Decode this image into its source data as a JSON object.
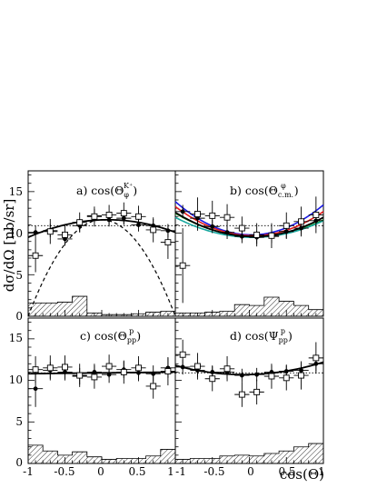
{
  "figure": {
    "ylabel": "dσ/dΩ [nb/sr]",
    "xlabel": "cos(Θ)",
    "x_ticks": [
      "-1",
      "-0.5",
      "0",
      "0.5",
      "1"
    ],
    "x_ticks_last": [
      "-1",
      "-0.5",
      "0",
      "0.5",
      "1"
    ],
    "y_ticks": [
      "0",
      "5",
      "10",
      "15"
    ],
    "colors": {
      "frame": "#000000",
      "fit": "#000000",
      "model_blue": "#1a1ae6",
      "model_red": "#e31a1a",
      "model_green": "#1a9c1a",
      "model_teal": "#18a8a0"
    }
  },
  "chart_data": [
    {
      "type": "scatter",
      "panel": "a",
      "title": "a) cos(Θ_φ^{K+})",
      "title_main": "a) cos(Θ",
      "title_sub": "φ",
      "title_sup": "K⁺",
      "xlim": [
        -1,
        1
      ],
      "ylim": [
        0,
        17.5
      ],
      "reference_line": 10.9,
      "series": [
        {
          "marker": "filled-circle",
          "x": [
            -0.9,
            -0.7,
            -0.5,
            -0.3,
            -0.1,
            0.1,
            0.3,
            0.5,
            0.7,
            0.9
          ],
          "y": [
            10.1,
            10.3,
            9.3,
            10.9,
            12.1,
            11.6,
            11.8,
            11.0,
            10.9,
            10.3
          ],
          "err": [
            0.8,
            0.8,
            0.8,
            0.8,
            0.8,
            0.8,
            0.8,
            0.8,
            0.8,
            0.8
          ]
        },
        {
          "marker": "open-square",
          "x": [
            -0.9,
            -0.7,
            -0.5,
            -0.3,
            -0.1,
            0.1,
            0.3,
            0.5,
            0.7,
            0.9
          ],
          "y": [
            7.3,
            10.2,
            9.8,
            11.3,
            12.0,
            12.2,
            12.4,
            12.0,
            10.4,
            8.9
          ],
          "err": [
            2.0,
            1.5,
            1.3,
            1.2,
            1.2,
            1.2,
            1.3,
            1.3,
            1.5,
            2.0
          ]
        }
      ],
      "fit": {
        "style": "solid",
        "a": 11.6,
        "b": 0.3,
        "c": -1.8
      },
      "model": {
        "style": "dashed",
        "a": 11.6,
        "b": 0.0,
        "c": -11.6
      },
      "histogram": [
        1.6,
        1.6,
        1.7,
        2.4,
        0.4,
        0.2,
        0.2,
        0.3,
        0.5,
        0.6
      ]
    },
    {
      "type": "scatter",
      "panel": "b",
      "title": "b) cos(Θ_{c.m.}^φ)",
      "title_main": "b) cos(Θ",
      "title_sub": "c.m.",
      "title_sup": "φ",
      "xlim": [
        -1,
        1
      ],
      "ylim": [
        0,
        17.5
      ],
      "reference_line": 10.9,
      "series": [
        {
          "marker": "filled-circle",
          "x": [
            -0.9,
            -0.7,
            -0.5,
            -0.3,
            -0.1,
            0.1,
            0.3,
            0.5,
            0.7,
            0.9
          ],
          "y": [
            12.6,
            11.8,
            10.8,
            10.1,
            9.6,
            9.5,
            9.6,
            10.2,
            10.6,
            11.5
          ],
          "err": [
            0.8,
            0.8,
            0.8,
            0.8,
            0.8,
            0.8,
            0.8,
            0.8,
            0.8,
            0.8
          ]
        },
        {
          "marker": "open-square",
          "x": [
            -0.9,
            -0.7,
            -0.5,
            -0.3,
            -0.1,
            0.1,
            0.3,
            0.5,
            0.7,
            0.9
          ],
          "y": [
            6.1,
            12.3,
            12.1,
            11.9,
            10.6,
            9.8,
            9.7,
            10.9,
            11.4,
            12.2
          ],
          "err": [
            4.5,
            2.0,
            1.8,
            1.6,
            1.4,
            1.4,
            1.5,
            1.6,
            1.8,
            2.2
          ]
        }
      ],
      "fit": {
        "style": "solid",
        "a": 9.6,
        "b": -0.3,
        "c": 2.6
      },
      "models": [
        {
          "color": "model_blue",
          "a": 9.8,
          "b": -0.2,
          "c": 3.8
        },
        {
          "color": "model_red",
          "a": 9.7,
          "b": -0.3,
          "c": 3.2
        },
        {
          "color": "model_green",
          "a": 9.6,
          "b": -0.4,
          "c": 2.4
        },
        {
          "color": "model_teal",
          "a": 9.5,
          "b": -0.2,
          "c": 2.2
        }
      ],
      "histogram": [
        0.4,
        0.4,
        0.5,
        0.6,
        1.4,
        1.3,
        2.3,
        1.8,
        1.3,
        0.8
      ]
    },
    {
      "type": "scatter",
      "panel": "c",
      "title": "c) cos(Θ_{pp}^p)",
      "title_main": "c) cos(Θ",
      "title_sub": "pp",
      "title_sup": "p",
      "xlim": [
        -1,
        1
      ],
      "ylim": [
        0,
        17.5
      ],
      "reference_line": 10.9,
      "series": [
        {
          "marker": "filled-circle",
          "x": [
            -0.9,
            -0.7,
            -0.5,
            -0.3,
            -0.1,
            0.1,
            0.3,
            0.5,
            0.7,
            0.9
          ],
          "y": [
            9.0,
            11.2,
            11.0,
            10.5,
            11.0,
            10.7,
            11.3,
            10.9,
            10.8,
            11.5
          ],
          "err": [
            2.2,
            1.0,
            1.0,
            1.0,
            1.0,
            1.0,
            1.0,
            1.0,
            1.0,
            1.2
          ]
        },
        {
          "marker": "open-square",
          "x": [
            -0.9,
            -0.7,
            -0.5,
            -0.3,
            -0.1,
            0.1,
            0.3,
            0.5,
            0.7,
            0.9
          ],
          "y": [
            11.3,
            11.5,
            11.6,
            10.6,
            10.4,
            11.7,
            11.0,
            11.5,
            9.3,
            11.1
          ],
          "err": [
            1.6,
            1.5,
            1.4,
            1.4,
            1.4,
            1.4,
            1.4,
            1.4,
            1.5,
            1.7
          ]
        }
      ],
      "fit": {
        "style": "solid",
        "a": 10.9,
        "b": 0.1,
        "c": 0.0
      },
      "histogram": [
        2.2,
        1.5,
        1.0,
        1.4,
        0.8,
        0.5,
        0.6,
        0.6,
        0.9,
        1.7
      ]
    },
    {
      "type": "scatter",
      "panel": "d",
      "title": "d) cos(Ψ_{pp}^p)",
      "title_main": "d) cos(Ψ",
      "title_sub": "pp",
      "title_sup": "p",
      "xlim": [
        -1,
        1
      ],
      "ylim": [
        0,
        17.5
      ],
      "reference_line": 10.9,
      "series": [
        {
          "marker": "filled-circle",
          "x": [
            -0.9,
            -0.7,
            -0.5,
            -0.3,
            -0.1,
            0.1,
            0.3,
            0.5,
            0.7,
            0.9
          ],
          "y": [
            11.6,
            11.2,
            11.0,
            11.0,
            10.6,
            10.7,
            11.0,
            11.1,
            11.2,
            12.0
          ],
          "err": [
            0.9,
            0.8,
            0.8,
            0.8,
            0.8,
            0.8,
            0.8,
            0.8,
            0.9,
            0.9
          ]
        },
        {
          "marker": "open-square",
          "x": [
            -0.9,
            -0.7,
            -0.5,
            -0.3,
            -0.1,
            0.1,
            0.3,
            0.5,
            0.7,
            0.9
          ],
          "y": [
            13.1,
            11.7,
            10.2,
            11.4,
            8.3,
            8.6,
            10.5,
            10.3,
            10.6,
            12.7
          ],
          "err": [
            1.8,
            1.6,
            1.5,
            1.5,
            1.5,
            1.5,
            1.5,
            1.5,
            1.7,
            1.9
          ]
        }
      ],
      "fit": {
        "style": "solid",
        "a": 10.7,
        "b": 0.2,
        "c": 1.3
      },
      "histogram": [
        0.5,
        0.6,
        0.6,
        0.9,
        1.0,
        0.9,
        1.2,
        1.5,
        2.0,
        2.4
      ]
    }
  ]
}
